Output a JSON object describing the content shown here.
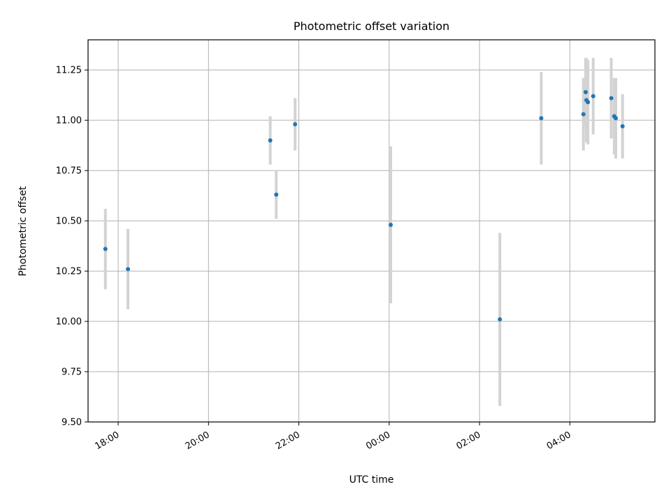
{
  "chart_data": {
    "type": "scatter",
    "title": "Photometric offset variation",
    "xlabel": "UTC time",
    "ylabel": "Photometric offset",
    "x_axis": {
      "kind": "time",
      "range": [
        "17:20",
        "05:53"
      ],
      "ticks": [
        "18:00",
        "20:00",
        "22:00",
        "00:00",
        "02:00",
        "04:00"
      ]
    },
    "y_axis": {
      "range": [
        9.5,
        11.4
      ],
      "ticks": [
        "9.50",
        "9.75",
        "10.00",
        "10.25",
        "10.50",
        "10.75",
        "11.00",
        "11.25"
      ]
    },
    "grid": true,
    "marker_color": "#1f77b4",
    "errorbar_color": "#d3d3d3",
    "points": [
      {
        "t": "17:43",
        "y": 10.36,
        "err": 0.2
      },
      {
        "t": "18:13",
        "y": 10.26,
        "err": 0.2
      },
      {
        "t": "21:22",
        "y": 10.9,
        "err": 0.12
      },
      {
        "t": "21:30",
        "y": 10.63,
        "err": 0.12
      },
      {
        "t": "21:55",
        "y": 10.98,
        "err": 0.13
      },
      {
        "t": "00:02",
        "y": 10.48,
        "err": 0.39
      },
      {
        "t": "02:27",
        "y": 10.01,
        "err": 0.43
      },
      {
        "t": "03:22",
        "y": 11.01,
        "err": 0.23
      },
      {
        "t": "04:18",
        "y": 11.03,
        "err": 0.18
      },
      {
        "t": "04:21",
        "y": 11.14,
        "err": 0.17
      },
      {
        "t": "04:22",
        "y": 11.1,
        "err": 0.21
      },
      {
        "t": "04:24",
        "y": 11.09,
        "err": 0.21
      },
      {
        "t": "04:31",
        "y": 11.12,
        "err": 0.19
      },
      {
        "t": "04:55",
        "y": 11.11,
        "err": 0.2
      },
      {
        "t": "04:59",
        "y": 11.02,
        "err": 0.19
      },
      {
        "t": "05:01",
        "y": 11.01,
        "err": 0.2
      },
      {
        "t": "05:10",
        "y": 10.97,
        "err": 0.16
      }
    ]
  }
}
